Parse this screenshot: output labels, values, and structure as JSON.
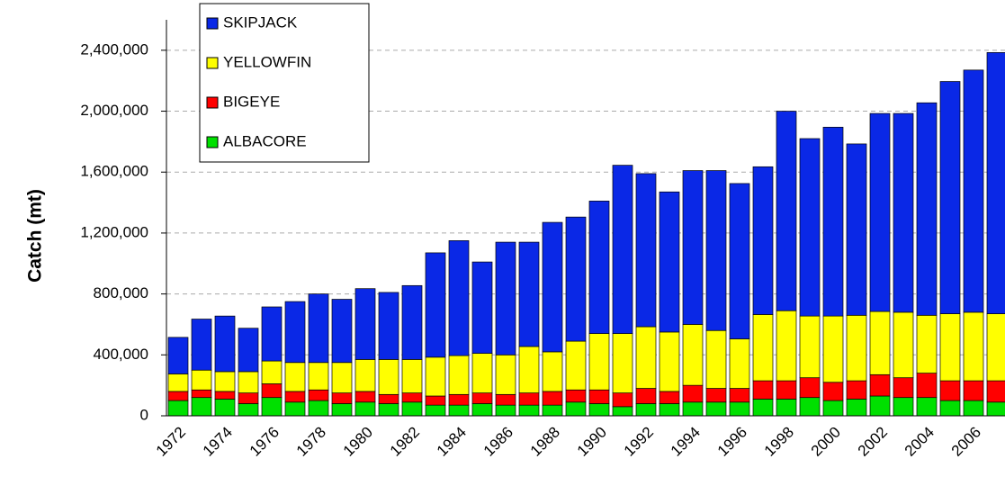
{
  "chart_data": {
    "type": "stacked_bar",
    "y_label": "Catch (mt)",
    "categories": [
      "1972",
      null,
      "1974",
      null,
      "1976",
      null,
      "1978",
      null,
      "1980",
      null,
      "1982",
      null,
      "1984",
      null,
      "1986",
      null,
      "1988",
      null,
      "1990",
      null,
      "1992",
      null,
      "1994",
      null,
      "1996",
      null,
      "1998",
      null,
      "2000",
      null,
      "2002",
      null,
      "2004",
      null,
      "2006",
      null
    ],
    "series": [
      {
        "name": "SKIPJACK",
        "color": "#0a28e6",
        "values": [
          240000,
          335000,
          365000,
          285000,
          355000,
          400000,
          450000,
          415000,
          465000,
          440000,
          485000,
          685000,
          755000,
          600000,
          740000,
          685000,
          850000,
          815000,
          870000,
          1105000,
          1005000,
          920000,
          1010000,
          1050000,
          1020000,
          970000,
          1310000,
          1165000,
          1240000,
          1125000,
          1300000,
          1305000,
          1395000,
          1525000,
          1590000,
          1715000
        ]
      },
      {
        "name": "YELLOWFIN",
        "color": "#ffff00",
        "values": [
          115000,
          130000,
          130000,
          140000,
          150000,
          190000,
          180000,
          200000,
          210000,
          230000,
          220000,
          255000,
          255000,
          260000,
          260000,
          305000,
          260000,
          320000,
          370000,
          390000,
          405000,
          390000,
          400000,
          380000,
          325000,
          435000,
          460000,
          405000,
          435000,
          430000,
          415000,
          430000,
          380000,
          440000,
          450000,
          440000
        ]
      },
      {
        "name": "BIGEYE",
        "color": "#ff0000",
        "values": [
          60000,
          50000,
          50000,
          70000,
          90000,
          70000,
          70000,
          70000,
          70000,
          60000,
          60000,
          60000,
          70000,
          70000,
          70000,
          80000,
          90000,
          80000,
          90000,
          90000,
          100000,
          80000,
          110000,
          90000,
          90000,
          120000,
          120000,
          130000,
          120000,
          120000,
          140000,
          130000,
          160000,
          130000,
          130000,
          140000
        ]
      },
      {
        "name": "ALBACORE",
        "color": "#00e000",
        "values": [
          100000,
          120000,
          110000,
          80000,
          120000,
          90000,
          100000,
          80000,
          90000,
          80000,
          90000,
          70000,
          70000,
          80000,
          70000,
          70000,
          70000,
          90000,
          80000,
          60000,
          80000,
          80000,
          90000,
          90000,
          90000,
          110000,
          110000,
          120000,
          100000,
          110000,
          130000,
          120000,
          120000,
          100000,
          100000,
          90000
        ]
      }
    ],
    "ylim": [
      0,
      2600000
    ],
    "yticks": [
      {
        "value": 0,
        "label": "0"
      },
      {
        "value": 400000,
        "label": "400,000"
      },
      {
        "value": 800000,
        "label": "800,000"
      },
      {
        "value": 1200000,
        "label": "1,200,000"
      },
      {
        "value": 1600000,
        "label": "1,600,000"
      },
      {
        "value": 2000000,
        "label": "2,000,000"
      },
      {
        "value": 2400000,
        "label": "2,400,000"
      }
    ],
    "grid": true,
    "legend": "upper left"
  }
}
